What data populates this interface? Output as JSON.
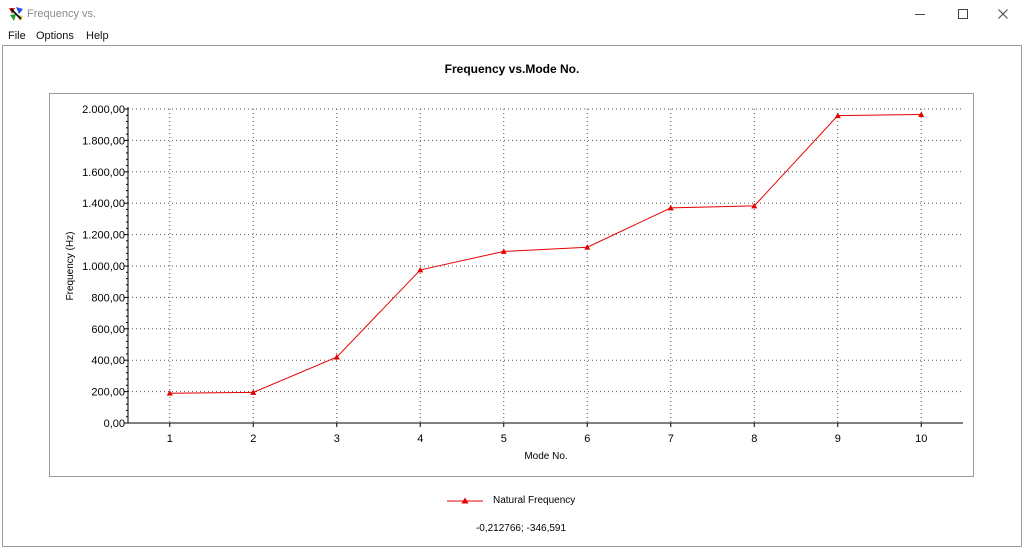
{
  "window": {
    "title": "Frequency vs.",
    "app_icon": "multicolor-app-icon",
    "controls": [
      "minimize-icon",
      "maximize-icon",
      "close-icon"
    ]
  },
  "menu": {
    "items": [
      "File",
      "Options",
      "Help"
    ]
  },
  "chart_data": {
    "type": "line",
    "title": "Frequency vs.Mode No.",
    "xlabel": "Mode No.",
    "ylabel": "Frequency (Hz)",
    "x": [
      1,
      2,
      3,
      4,
      5,
      6,
      7,
      8,
      9,
      10
    ],
    "xlim": [
      0.5,
      10.5
    ],
    "ylim": [
      0,
      2000
    ],
    "y_ticks": [
      "0,00",
      "200,00",
      "400,00",
      "600,00",
      "800,00",
      "1.000,00",
      "1.200,00",
      "1.400,00",
      "1.600,00",
      "1.800,00",
      "2.000,00"
    ],
    "x_ticks": [
      "1",
      "2",
      "3",
      "4",
      "5",
      "6",
      "7",
      "8",
      "9",
      "10"
    ],
    "grid": true,
    "legend_position": "bottom-center",
    "series": [
      {
        "name": "Natural Frequency",
        "color": "#e60000",
        "marker": "triangle",
        "values": [
          190,
          195,
          420,
          975,
          1093,
          1120,
          1370,
          1383,
          1958,
          1965
        ]
      }
    ]
  },
  "status": {
    "coordinates": "-0,212766; -346,591"
  }
}
